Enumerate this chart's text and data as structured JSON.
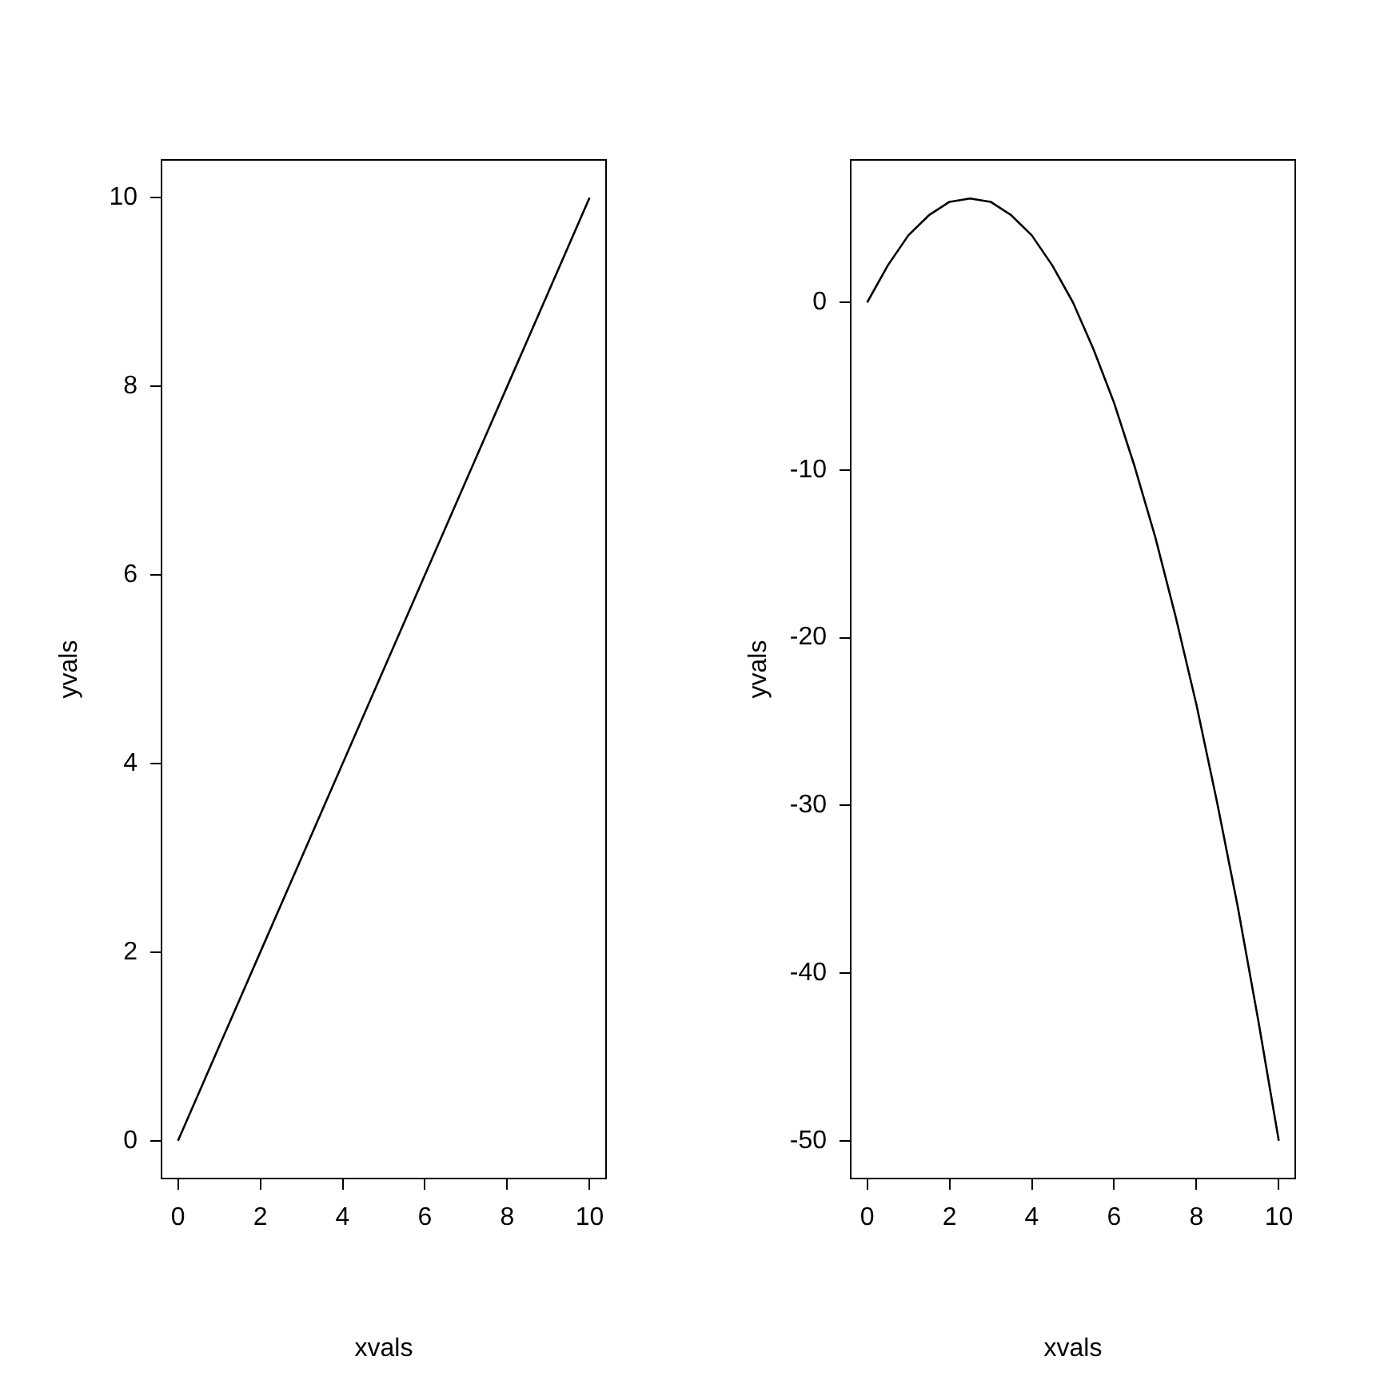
{
  "chart_data": [
    {
      "type": "line",
      "x": [
        0,
        1,
        2,
        3,
        4,
        5,
        6,
        7,
        8,
        9,
        10
      ],
      "values": [
        0,
        1,
        2,
        3,
        4,
        5,
        6,
        7,
        8,
        9,
        10
      ],
      "color": "#000000",
      "xlabel": "xvals",
      "ylabel": "yvals",
      "xlim": [
        -0.4,
        10.4
      ],
      "ylim": [
        -0.4,
        10.4
      ],
      "xticks": [
        0,
        2,
        4,
        6,
        8,
        10
      ],
      "yticks": [
        0,
        2,
        4,
        6,
        8,
        10
      ],
      "marker": "none"
    },
    {
      "type": "line",
      "x": [
        0,
        0.5,
        1,
        1.5,
        2,
        2.5,
        3,
        3.5,
        4,
        4.5,
        5,
        5.5,
        6,
        6.5,
        7,
        7.5,
        8,
        8.5,
        9,
        9.5,
        10
      ],
      "values": [
        0,
        2.2,
        4,
        5.2,
        6,
        6.2,
        6,
        5.2,
        4,
        2.2,
        0,
        -2.8,
        -6,
        -9.8,
        -14,
        -18.8,
        -24,
        -29.8,
        -36,
        -42.8,
        -50
      ],
      "color": "#000000",
      "xlabel": "xvals",
      "ylabel": "yvals",
      "xlim": [
        -0.4,
        10.4
      ],
      "ylim": [
        -52.25,
        8.5
      ],
      "xticks": [
        0,
        2,
        4,
        6,
        8,
        10
      ],
      "yticks": [
        -50,
        -40,
        -30,
        -20,
        -10,
        0
      ],
      "marker": "none"
    }
  ]
}
